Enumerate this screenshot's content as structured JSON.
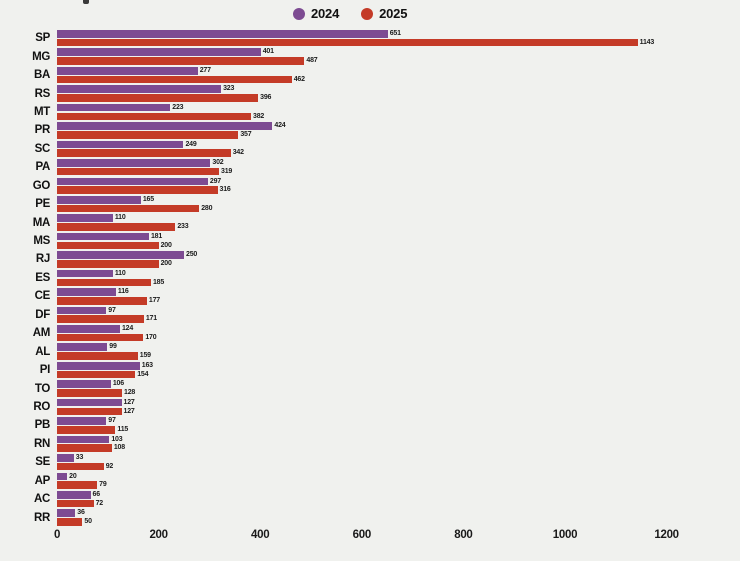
{
  "legend": {
    "items": [
      {
        "label": "2024",
        "color": "#7d4b92"
      },
      {
        "label": "2025",
        "color": "#c43b27"
      }
    ]
  },
  "colors": {
    "background": "#f0f1ee",
    "series_2024": "#7d4b92",
    "series_2025": "#c43b27",
    "text": "#1a1a1a"
  },
  "chart_data": {
    "type": "bar",
    "orientation": "horizontal",
    "title": "",
    "xlabel": "",
    "ylabel": "",
    "categories": [
      "SP",
      "MG",
      "BA",
      "RS",
      "MT",
      "PR",
      "SC",
      "PA",
      "GO",
      "PE",
      "MA",
      "MS",
      "RJ",
      "ES",
      "CE",
      "DF",
      "AM",
      "AL",
      "PI",
      "TO",
      "RO",
      "PB",
      "RN",
      "SE",
      "AP",
      "AC",
      "RR"
    ],
    "series": [
      {
        "name": "2024",
        "color": "#7d4b92",
        "values": [
          651,
          401,
          277,
          323,
          223,
          424,
          249,
          302,
          297,
          165,
          110,
          181,
          250,
          110,
          116,
          97,
          124,
          99,
          163,
          106,
          127,
          97,
          103,
          33,
          20,
          66,
          36
        ]
      },
      {
        "name": "2025",
        "color": "#c43b27",
        "values": [
          1143,
          487,
          462,
          396,
          382,
          357,
          342,
          319,
          316,
          280,
          233,
          200,
          200,
          185,
          177,
          171,
          170,
          159,
          154,
          128,
          127,
          115,
          108,
          92,
          79,
          72,
          50
        ]
      }
    ],
    "x_ticks": [
      0,
      200,
      400,
      600,
      800,
      1000,
      1200
    ],
    "xlim": [
      0,
      1260
    ],
    "grid": false,
    "legend_position": "top",
    "value_labels": true
  }
}
